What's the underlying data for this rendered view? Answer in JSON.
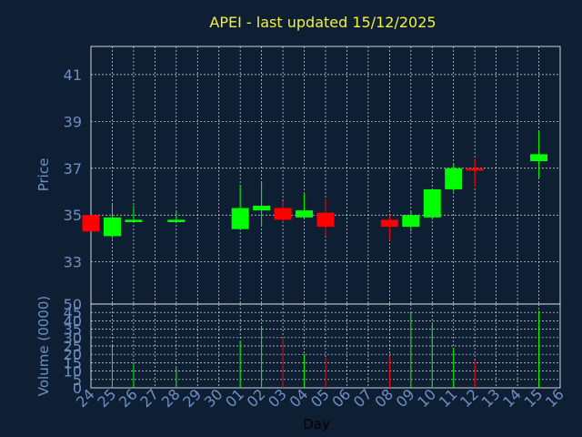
{
  "chart_data": {
    "type": "candlestick",
    "title": "APEI - last updated 15/12/2025",
    "xlabel": "Day",
    "price_panel": {
      "ylabel": "Price",
      "ylim": [
        31.2,
        42.2
      ],
      "yticks": [
        33,
        35,
        37,
        39,
        41
      ]
    },
    "volume_panel": {
      "ylabel": "Volume (0000)",
      "ylim": [
        0,
        50
      ],
      "yticks": [
        0,
        5,
        10,
        15,
        20,
        25,
        30,
        35,
        40,
        45,
        50
      ]
    },
    "x_tick_labels": [
      "24",
      "25",
      "26",
      "27",
      "28",
      "29",
      "30",
      "01",
      "02",
      "03",
      "04",
      "05",
      "06",
      "07",
      "08",
      "09",
      "10",
      "11",
      "12",
      "13",
      "14",
      "15",
      "16"
    ],
    "colors": {
      "up": "#00ff00",
      "down": "#ff0000",
      "background": "#0f1f33",
      "title": "#f2f23a",
      "axis_text": "#6f8fc4"
    },
    "candles": [
      {
        "x": "24",
        "open": 35.0,
        "high": 35.0,
        "low": 34.3,
        "close": 34.3,
        "volume": 0
      },
      {
        "x": "25",
        "open": 34.1,
        "high": 35.5,
        "low": 34.0,
        "close": 34.9,
        "volume": 25
      },
      {
        "x": "26",
        "open": 34.7,
        "high": 35.4,
        "low": 34.7,
        "close": 34.8,
        "volume": 14
      },
      {
        "x": "28",
        "open": 34.7,
        "high": 35.2,
        "low": 34.7,
        "close": 34.8,
        "volume": 12
      },
      {
        "x": "01",
        "open": 34.4,
        "high": 36.3,
        "low": 34.4,
        "close": 35.3,
        "volume": 28
      },
      {
        "x": "02",
        "open": 35.2,
        "high": 36.4,
        "low": 34.5,
        "close": 35.4,
        "volume": 37
      },
      {
        "x": "03",
        "open": 35.3,
        "high": 35.6,
        "low": 34.7,
        "close": 34.8,
        "volume": 30
      },
      {
        "x": "04",
        "open": 34.9,
        "high": 35.9,
        "low": 34.9,
        "close": 35.2,
        "volume": 20
      },
      {
        "x": "05",
        "open": 35.1,
        "high": 35.7,
        "low": 34.1,
        "close": 34.5,
        "volume": 18
      },
      {
        "x": "08",
        "open": 34.8,
        "high": 35.0,
        "low": 33.9,
        "close": 34.5,
        "volume": 19
      },
      {
        "x": "09",
        "open": 34.5,
        "high": 35.2,
        "low": 34.3,
        "close": 35.0,
        "volume": 45
      },
      {
        "x": "10",
        "open": 34.9,
        "high": 36.1,
        "low": 34.8,
        "close": 36.1,
        "volume": 38
      },
      {
        "x": "11",
        "open": 36.1,
        "high": 37.2,
        "low": 36.0,
        "close": 37.0,
        "volume": 24
      },
      {
        "x": "12",
        "open": 37.0,
        "high": 37.4,
        "low": 36.2,
        "close": 36.9,
        "volume": 16
      },
      {
        "x": "15",
        "open": 37.3,
        "high": 38.6,
        "low": 36.6,
        "close": 37.6,
        "volume": 46
      }
    ]
  }
}
